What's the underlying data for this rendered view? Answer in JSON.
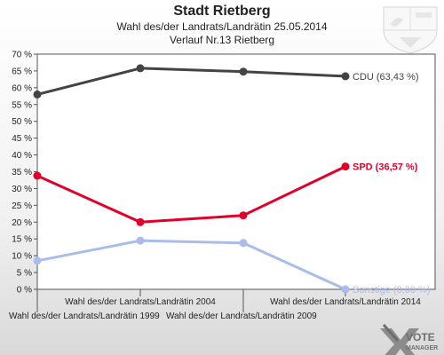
{
  "chart_data": {
    "type": "line",
    "title": "Stadt Rietberg",
    "subtitle": "Wahl des/der Landrats/Landrätin 25.05.2014",
    "subtitle2": "Verlauf Nr.13 Rietberg",
    "categories": [
      "Wahl des/der Landrats/Landrätin 1999",
      "Wahl des/der Landrats/Landrätin 2004",
      "Wahl des/der Landrats/Landrätin 2009",
      "Wahl des/der Landrats/Landrätin 2014"
    ],
    "yticks": [
      "0 %",
      "5 %",
      "10 %",
      "15 %",
      "20 %",
      "25 %",
      "30 %",
      "35 %",
      "40 %",
      "45 %",
      "50 %",
      "55 %",
      "60 %",
      "65 %",
      "70 %"
    ],
    "ylim": [
      0,
      70
    ],
    "grid": false,
    "series": [
      {
        "name": "CDU",
        "label": "CDU (63,43 %)",
        "color": "#444444",
        "values": [
          58.0,
          65.8,
          64.8,
          63.43
        ]
      },
      {
        "name": "SPD",
        "label": "SPD (36,57 %)",
        "color": "#e0002a",
        "values": [
          33.8,
          20.0,
          22.0,
          36.57
        ]
      },
      {
        "name": "Sonstige",
        "label": "Sonstige (0,00 %)",
        "color": "#aabcec",
        "values": [
          8.5,
          14.5,
          13.8,
          0.0
        ]
      }
    ]
  },
  "brand": {
    "vote": "VOTE",
    "manager": "MANAGER"
  }
}
